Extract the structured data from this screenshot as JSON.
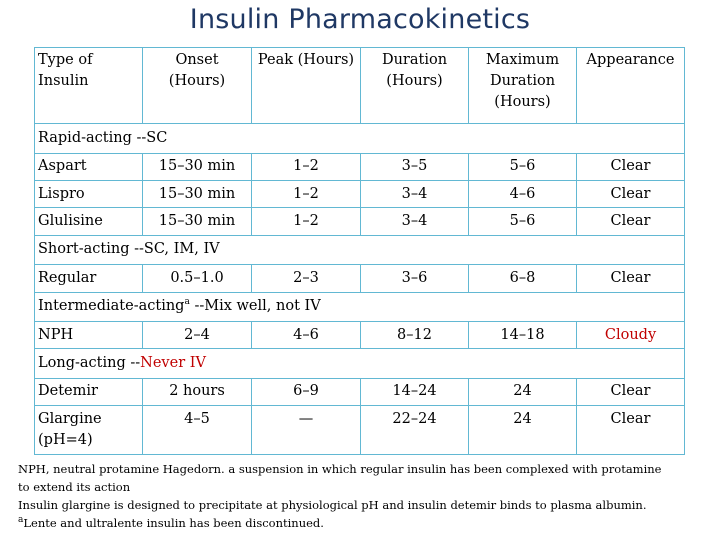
{
  "title": "Insulin Pharmacokinetics",
  "headers": {
    "type": "Type of Insulin",
    "onset": "Onset (Hours)",
    "peak": "Peak (Hours)",
    "duration": "Duration (Hours)",
    "max_duration": "Maximum Duration (Hours)",
    "appearance": "Appearance"
  },
  "sections": {
    "rapid": {
      "name": "Rapid-acting",
      "route": " --SC",
      "rows": [
        {
          "type": "Aspart",
          "onset": "15–30 min",
          "peak": "1–2",
          "duration": "3–5",
          "max": "5–6",
          "appearance": "Clear"
        },
        {
          "type": "Lispro",
          "onset": "15–30 min",
          "peak": "1–2",
          "duration": "3–4",
          "max": "4–6",
          "appearance": "Clear"
        },
        {
          "type": "Glulisine",
          "onset": "15–30 min",
          "peak": "1–2",
          "duration": "3–4",
          "max": "5–6",
          "appearance": "Clear"
        }
      ]
    },
    "short": {
      "name": "Short-acting",
      "route": " --SC, IM, IV",
      "rows": [
        {
          "type": "Regular",
          "onset": "0.5–1.0",
          "peak": "2–3",
          "duration": "3–6",
          "max": "6–8",
          "appearance": "Clear"
        }
      ]
    },
    "intermediate": {
      "name": "Intermediate-acting",
      "superscript": "a",
      "route": " --Mix well, not IV",
      "rows": [
        {
          "type": "NPH",
          "onset": "2–4",
          "peak": "4–6",
          "duration": "8–12",
          "max": "14–18",
          "appearance": "Cloudy"
        }
      ]
    },
    "long": {
      "name": "Long-acting",
      "route_prefix": " --",
      "route_highlight": "Never IV",
      "rows": [
        {
          "type": "Detemir",
          "onset": "2 hours",
          "peak": "6–9",
          "duration": "14–24",
          "max": "24",
          "appearance": "Clear"
        },
        {
          "type": "Glargine (pH=4)",
          "onset": "4–5",
          "peak": "—",
          "duration": "22–24",
          "max": "24",
          "appearance": "Clear"
        }
      ]
    }
  },
  "notes": {
    "line1": "NPH, neutral protamine Hagedorn. a suspension in which regular insulin has been complexed with protamine",
    "line2": "to extend its action",
    "line3": "Insulin glargine is designed to precipitate at physiological pH and insulin detemir binds to plasma albumin.",
    "line4_sup": "a",
    "line4": "Lente and ultralente insulin has been discontinued."
  },
  "colors": {
    "title": "#1f3864",
    "border": "#62b8d3",
    "highlight": "#c00000"
  }
}
